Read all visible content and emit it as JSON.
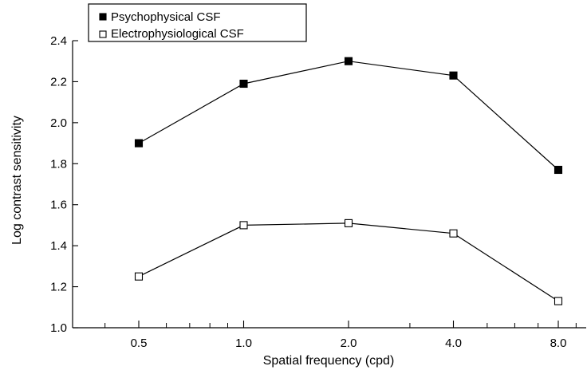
{
  "chart_data": {
    "type": "line",
    "title": "",
    "xlabel": "Spatial frequency (cpd)",
    "ylabel": "Log contrast sensitivity",
    "x": [
      0.5,
      1.0,
      2.0,
      4.0,
      8.0
    ],
    "x_tick_labels": [
      "0.5",
      "1.0",
      "2.0",
      "4.0",
      "8.0"
    ],
    "x_scale": "log2",
    "y_ticks": [
      1.0,
      1.2,
      1.4,
      1.6,
      1.8,
      2.0,
      2.2,
      2.4
    ],
    "y_tick_labels": [
      "1.0",
      "1.2",
      "1.4",
      "1.6",
      "1.8",
      "2.0",
      "2.2",
      "2.4"
    ],
    "ylim": [
      1.0,
      2.4
    ],
    "grid": false,
    "legend_position": "top-left",
    "series": [
      {
        "name": "Psychophysical CSF",
        "marker": "filled-square",
        "color": "#000000",
        "values": [
          1.9,
          2.19,
          2.3,
          2.23,
          1.77
        ]
      },
      {
        "name": "Electrophysiological CSF",
        "marker": "open-square",
        "color": "#000000",
        "values": [
          1.25,
          1.5,
          1.51,
          1.46,
          1.13
        ]
      }
    ]
  }
}
